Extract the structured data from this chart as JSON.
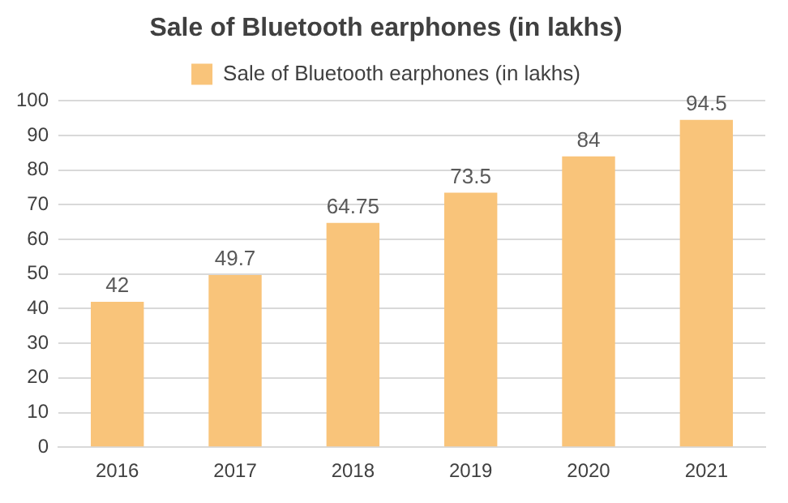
{
  "chart_data": {
    "type": "bar",
    "title": "Sale of Bluetooth earphones (in lakhs)",
    "categories": [
      "2016",
      "2017",
      "2018",
      "2019",
      "2020",
      "2021"
    ],
    "series": [
      {
        "name": "Sale of Bluetooth earphones (in lakhs)",
        "color": "#f9c47a",
        "values": [
          42,
          49.7,
          64.75,
          73.5,
          84,
          94.5
        ]
      }
    ],
    "ylim": [
      0,
      100
    ],
    "yticks": [
      0,
      10,
      20,
      30,
      40,
      50,
      60,
      70,
      80,
      90,
      100
    ],
    "grid": "y",
    "legend": "top",
    "data_labels": true
  }
}
